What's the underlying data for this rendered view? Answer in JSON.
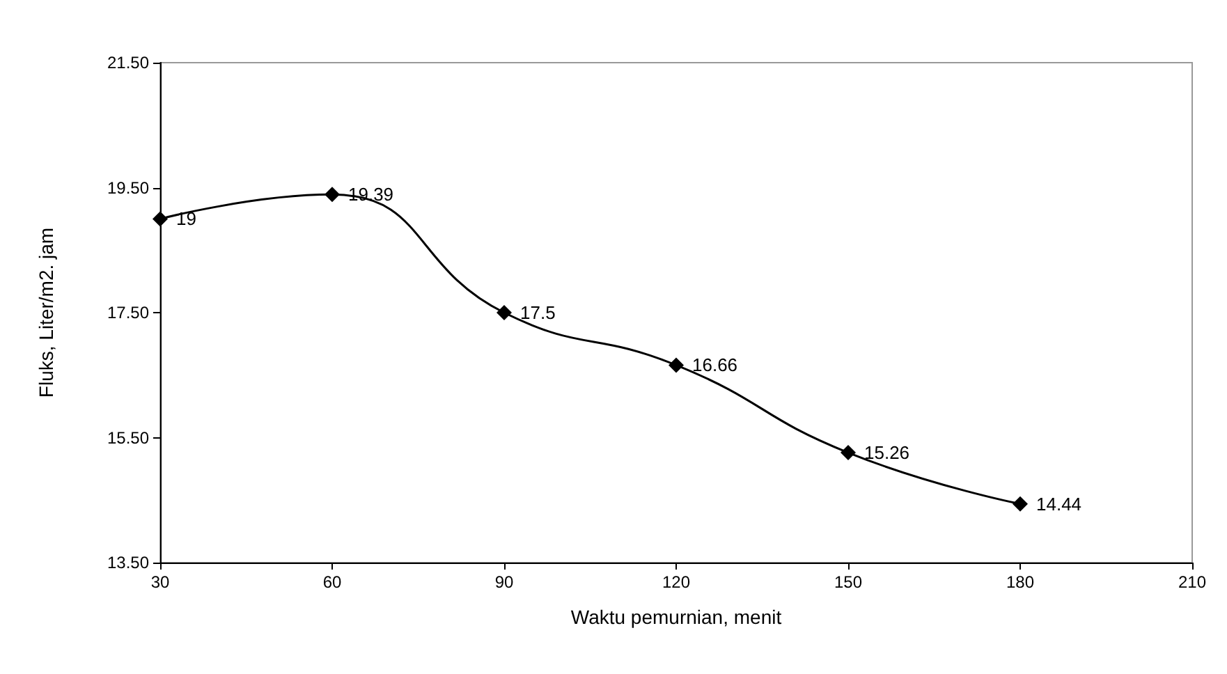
{
  "chart_data": {
    "type": "line",
    "xlabel": "Waktu pemurnian, menit",
    "ylabel": "Fluks, Liter/m2. jam",
    "x": [
      30,
      60,
      90,
      120,
      150,
      180
    ],
    "series": [
      {
        "color": "#000000",
        "values": [
          19,
          19.39,
          17.5,
          16.66,
          15.26,
          14.44
        ]
      }
    ],
    "xlim": [
      30,
      210
    ],
    "xticks": [
      30,
      60,
      90,
      120,
      150,
      180,
      210
    ],
    "ylim": [
      13.5,
      21.5
    ],
    "yticks": [
      {
        "value": 13.5,
        "label": "13.50"
      },
      {
        "value": 15.5,
        "label": "15.50"
      },
      {
        "value": 17.5,
        "label": "17.50"
      },
      {
        "value": 19.5,
        "label": "19.50"
      },
      {
        "value": 21.5,
        "label": "21.50"
      }
    ],
    "marker": "diamond",
    "line_style": "solid",
    "data_labels": true
  }
}
